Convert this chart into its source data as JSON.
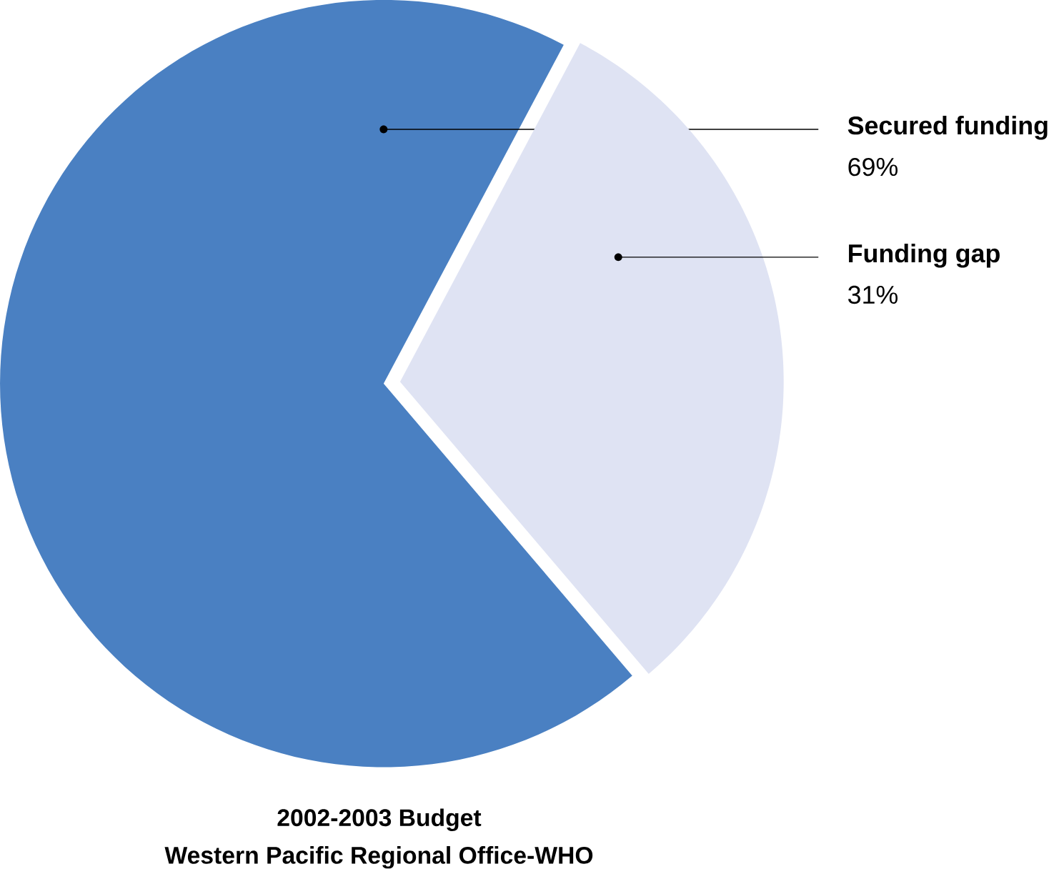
{
  "chart_data": {
    "type": "pie",
    "title": "2002-2003 Budget",
    "subtitle": "Western Pacific Regional Office-WHO",
    "categories": [
      "Secured funding",
      "Funding gap"
    ],
    "values": [
      69,
      31
    ],
    "colors": [
      "#4a80c2",
      "#dfe3f3"
    ],
    "value_labels": [
      "69%",
      "31%"
    ]
  }
}
